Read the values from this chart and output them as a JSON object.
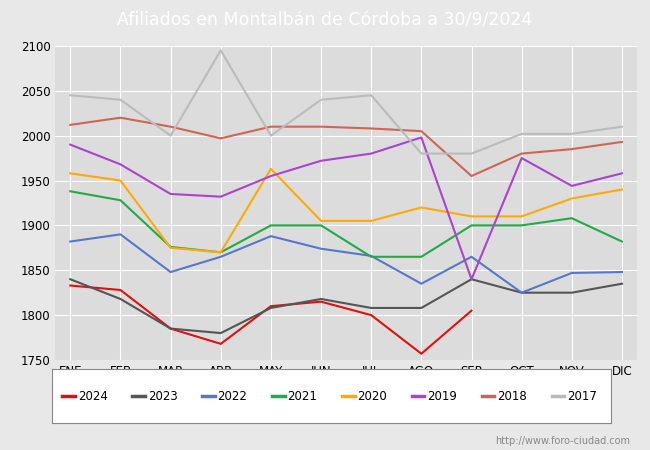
{
  "title": "Afiliados en Montalbán de Córdoba a 30/9/2024",
  "header_bg": "#5b7fcb",
  "months": [
    "ENE",
    "FEB",
    "MAR",
    "ABR",
    "MAY",
    "JUN",
    "JUL",
    "AGO",
    "SEP",
    "OCT",
    "NOV",
    "DIC"
  ],
  "ylim": [
    1750,
    2100
  ],
  "yticks": [
    1750,
    1800,
    1850,
    1900,
    1950,
    2000,
    2050,
    2100
  ],
  "series": {
    "2024": {
      "color": "#dd1111",
      "data": [
        1833,
        1828,
        1785,
        1768,
        1810,
        1815,
        1800,
        1757,
        1805,
        null,
        null,
        null
      ]
    },
    "2023": {
      "color": "#555555",
      "data": [
        1840,
        1818,
        1785,
        1780,
        1808,
        1818,
        1808,
        1808,
        1840,
        1825,
        1825,
        1835
      ]
    },
    "2022": {
      "color": "#5577cc",
      "data": [
        1882,
        1890,
        1848,
        1865,
        1888,
        1874,
        1866,
        1835,
        1865,
        1825,
        1847,
        1848
      ]
    },
    "2021": {
      "color": "#22aa44",
      "data": [
        1938,
        1928,
        1876,
        1870,
        1900,
        1900,
        1865,
        1865,
        1900,
        1900,
        1908,
        1882
      ]
    },
    "2020": {
      "color": "#ffaa00",
      "data": [
        1958,
        1950,
        1875,
        1870,
        1963,
        1905,
        1905,
        1920,
        1910,
        1910,
        1930,
        1940
      ]
    },
    "2019": {
      "color": "#aa44cc",
      "data": [
        1990,
        1968,
        1935,
        1932,
        1955,
        1972,
        1980,
        1998,
        1840,
        1975,
        1944,
        1958
      ]
    },
    "2018": {
      "color": "#cc6655",
      "data": [
        2012,
        2020,
        2010,
        1997,
        2010,
        2010,
        2008,
        2005,
        1955,
        1980,
        1985,
        1993
      ]
    },
    "2017": {
      "color": "#bbbbbb",
      "data": [
        2045,
        2040,
        2000,
        2095,
        2000,
        2040,
        2045,
        1980,
        1980,
        2002,
        2002,
        2010
      ]
    }
  },
  "legend_order": [
    "2024",
    "2023",
    "2022",
    "2021",
    "2020",
    "2019",
    "2018",
    "2017"
  ],
  "url_text": "http://www.foro-ciudad.com",
  "outer_bg": "#e8e8e8",
  "plot_bg_color": "#dcdcdc",
  "grid_color": "#ffffff"
}
